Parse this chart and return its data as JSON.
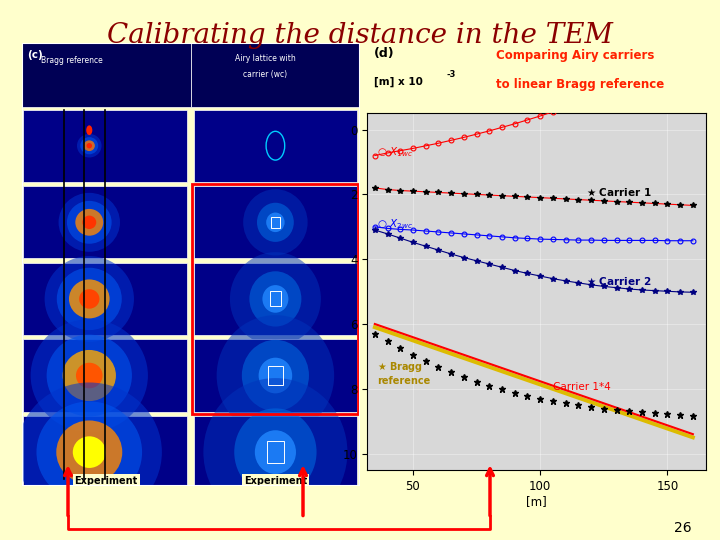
{
  "title": "Calibrating the distance in the TEM",
  "title_color": "#8B0000",
  "title_fontsize": 20,
  "background_color": "#FFFFCC",
  "slide_number": "26",
  "graph_title_line1": "Comparing Airy carriers",
  "graph_title_line2": "to linear Bragg reference",
  "graph_title_color": "#FF2200",
  "graph_xticks": [
    50,
    100,
    150
  ],
  "graph_yticks": [
    0,
    2,
    4,
    6,
    8,
    10
  ],
  "ylim": [
    -0.5,
    10.5
  ],
  "xlim": [
    32,
    165
  ],
  "x_data": [
    35,
    40,
    45,
    50,
    55,
    60,
    65,
    70,
    75,
    80,
    85,
    90,
    95,
    100,
    105,
    110,
    115,
    120,
    125,
    130,
    135,
    140,
    145,
    150,
    155,
    160
  ],
  "x1wc_y": [
    0.8,
    0.72,
    0.65,
    0.58,
    0.5,
    0.42,
    0.33,
    0.24,
    0.14,
    0.04,
    -0.07,
    -0.18,
    -0.3,
    -0.42,
    -0.55,
    -0.68,
    -0.8,
    -0.93,
    -1.05,
    -1.1,
    -1.12,
    -1.13,
    -1.13,
    -1.12,
    -1.11,
    -1.1
  ],
  "carrier1_y": [
    1.8,
    1.85,
    1.88,
    1.9,
    1.92,
    1.94,
    1.96,
    1.98,
    2.0,
    2.02,
    2.04,
    2.06,
    2.08,
    2.1,
    2.12,
    2.14,
    2.16,
    2.18,
    2.2,
    2.22,
    2.24,
    2.26,
    2.28,
    2.3,
    2.32,
    2.34
  ],
  "x2wc_y": [
    3.0,
    3.05,
    3.08,
    3.1,
    3.13,
    3.16,
    3.19,
    3.22,
    3.25,
    3.28,
    3.31,
    3.34,
    3.36,
    3.38,
    3.39,
    3.4,
    3.41,
    3.41,
    3.42,
    3.42,
    3.42,
    3.42,
    3.42,
    3.43,
    3.43,
    3.43
  ],
  "carrier2_y": [
    3.1,
    3.22,
    3.35,
    3.48,
    3.6,
    3.72,
    3.84,
    3.95,
    4.05,
    4.15,
    4.25,
    4.35,
    4.44,
    4.52,
    4.6,
    4.67,
    4.73,
    4.79,
    4.84,
    4.88,
    4.92,
    4.95,
    4.97,
    4.99,
    5.01,
    5.02
  ],
  "bragg_data_y": [
    6.3,
    6.52,
    6.74,
    6.95,
    7.14,
    7.32,
    7.49,
    7.64,
    7.78,
    7.91,
    8.02,
    8.12,
    8.21,
    8.3,
    8.37,
    8.44,
    8.5,
    8.56,
    8.61,
    8.65,
    8.69,
    8.73,
    8.76,
    8.79,
    8.81,
    8.83
  ],
  "carrier1x4_line_x": [
    35,
    160
  ],
  "carrier1x4_line_y": [
    6.0,
    9.4
  ],
  "bragg_line_x": [
    35,
    160
  ],
  "bragg_line_y": [
    6.1,
    9.5
  ],
  "plot_bg": "#D8D8D8"
}
